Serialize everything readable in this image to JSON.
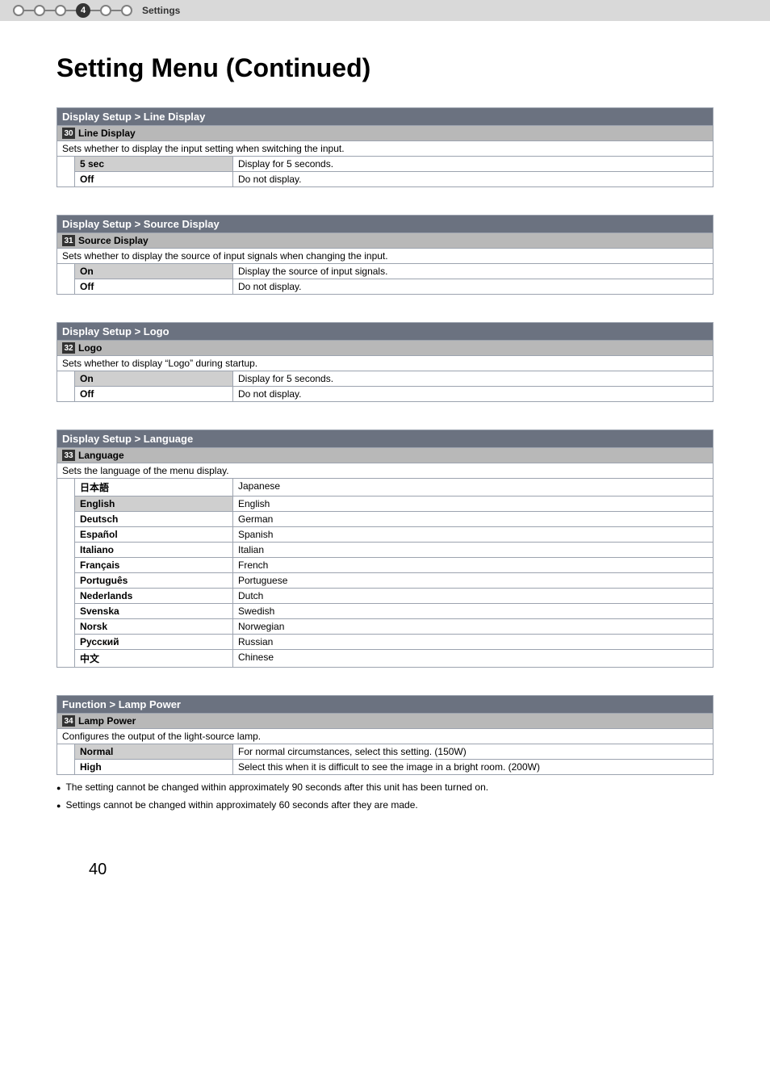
{
  "topbar": {
    "step_num": "4",
    "label": "Settings"
  },
  "page_title": "Setting Menu (Continued)",
  "sections": [
    {
      "header": "Display Setup > Line Display",
      "item_num": "30",
      "item_title": "Line Display",
      "desc": "Sets whether to display the input setting when switching the input.",
      "options": [
        {
          "k": "5 sec",
          "v": "Display for 5 seconds.",
          "selected": true
        },
        {
          "k": "Off",
          "v": "Do not display."
        }
      ]
    },
    {
      "header": "Display Setup > Source Display",
      "item_num": "31",
      "item_title": "Source Display",
      "desc": "Sets whether to display the source of input signals when changing the input.",
      "options": [
        {
          "k": "On",
          "v": "Display the source of input signals.",
          "selected": true
        },
        {
          "k": "Off",
          "v": "Do not display."
        }
      ]
    },
    {
      "header": "Display Setup > Logo",
      "item_num": "32",
      "item_title": "Logo",
      "desc": "Sets whether to display “Logo” during startup.",
      "options": [
        {
          "k": "On",
          "v": "Display for 5 seconds.",
          "selected": true
        },
        {
          "k": "Off",
          "v": "Do not display."
        }
      ]
    },
    {
      "header": "Display Setup > Language",
      "item_num": "33",
      "item_title": "Language",
      "desc": "Sets the language of the menu display.",
      "options": [
        {
          "k": "日本語",
          "v": "Japanese"
        },
        {
          "k": "English",
          "v": "English",
          "selected": true
        },
        {
          "k": "Deutsch",
          "v": "German"
        },
        {
          "k": "Español",
          "v": "Spanish"
        },
        {
          "k": "Italiano",
          "v": "Italian"
        },
        {
          "k": "Français",
          "v": "French"
        },
        {
          "k": "Português",
          "v": "Portuguese"
        },
        {
          "k": "Nederlands",
          "v": "Dutch"
        },
        {
          "k": "Svenska",
          "v": "Swedish"
        },
        {
          "k": "Norsk",
          "v": "Norwegian"
        },
        {
          "k": "Русский",
          "v": "Russian"
        },
        {
          "k": "中文",
          "v": "Chinese"
        }
      ]
    },
    {
      "header": "Function > Lamp Power",
      "item_num": "34",
      "item_title": "Lamp Power",
      "desc": "Configures the output of the light-source lamp.",
      "options": [
        {
          "k": "Normal",
          "v": "For normal circumstances, select this setting. (150W)",
          "selected": true
        },
        {
          "k": "High",
          "v": "Select this when it is difficult to see the image in a bright room. (200W)"
        }
      ],
      "notes": [
        "The setting cannot be changed within approximately 90 seconds after this unit has been turned on.",
        "Settings cannot be changed within approximately 60 seconds after they are made."
      ]
    }
  ],
  "page_number": "40"
}
